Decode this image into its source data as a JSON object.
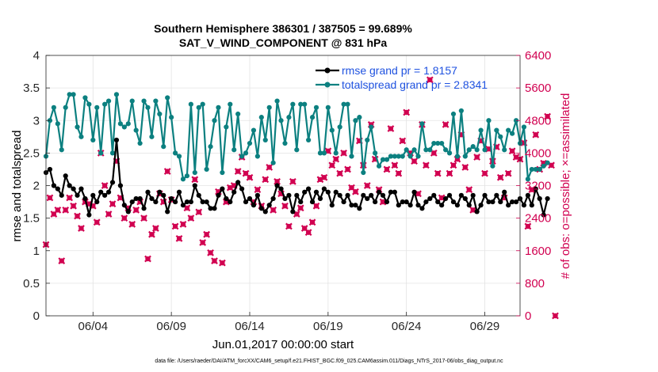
{
  "chart_data": {
    "type": "line",
    "title": "Southern Hemisphere 386301 / 387505 = 99.689%",
    "subtitle": "SAT_V_WIND_COMPONENT @ 831 hPa",
    "xlabel": "Jun.01,2017 00:00:00 start",
    "ylabel": "rmse and totalspread",
    "ylabel_right": "# of obs: o=possible; ×=assimilated",
    "footer": "data file: /Users/raeder/DAI/ATM_forcXX/CAM6_setup/f.e21.FHIST_BGC.f09_025.CAM6assim.011/Diags_NTrS_2017-06/obs_diag_output.nc",
    "xlim": [
      1,
      31.25
    ],
    "ylim": [
      0,
      4
    ],
    "ylim_right": [
      0,
      6400
    ],
    "x_ticks": [
      {
        "pos": 4,
        "label": "06/04"
      },
      {
        "pos": 9,
        "label": "06/09"
      },
      {
        "pos": 14,
        "label": "06/14"
      },
      {
        "pos": 19,
        "label": "06/19"
      },
      {
        "pos": 24,
        "label": "06/24"
      },
      {
        "pos": 29,
        "label": "06/29"
      }
    ],
    "y_ticks": [
      "0",
      "0.5",
      "1",
      "1.5",
      "2",
      "2.5",
      "3",
      "3.5",
      "4"
    ],
    "y_ticks_right": [
      "0",
      "800",
      "1600",
      "2400",
      "3200",
      "4000",
      "4800",
      "5600",
      "6400"
    ],
    "x_start": 1.0,
    "x_step": 0.25,
    "series": [
      {
        "name": "rmse grand pr = 1.8157",
        "color": "#000000",
        "axis": "left",
        "values": [
          2.2,
          2.25,
          2.0,
          1.95,
          1.85,
          2.15,
          2.0,
          1.95,
          1.85,
          1.95,
          1.8,
          1.55,
          1.85,
          1.75,
          1.9,
          1.85,
          1.9,
          2.05,
          2.7,
          2.0,
          1.7,
          1.6,
          1.75,
          1.8,
          1.8,
          1.65,
          1.9,
          1.8,
          1.75,
          1.9,
          1.85,
          1.6,
          1.8,
          1.75,
          1.9,
          1.7,
          1.75,
          1.75,
          2.0,
          1.85,
          1.75,
          1.75,
          1.65,
          1.65,
          1.85,
          1.95,
          1.8,
          1.75,
          1.9,
          2.05,
          1.95,
          1.75,
          1.8,
          1.7,
          1.85,
          1.65,
          1.6,
          1.7,
          1.8,
          2.0,
          1.95,
          1.8,
          1.85,
          1.6,
          1.85,
          1.75,
          1.9,
          1.95,
          1.75,
          1.9,
          1.8,
          1.95,
          1.9,
          1.7,
          1.9,
          1.85,
          1.75,
          1.85,
          1.7,
          1.7,
          1.65,
          1.85,
          1.8,
          1.85,
          1.75,
          1.9,
          1.85,
          1.75,
          1.9,
          1.9,
          1.7,
          1.75,
          1.75,
          1.7,
          1.9,
          1.7,
          1.65,
          1.75,
          1.8,
          1.85,
          1.75,
          1.7,
          1.8,
          1.85,
          1.75,
          1.7,
          1.85,
          1.8,
          1.7,
          1.85,
          1.6,
          1.7,
          1.85,
          1.75,
          1.75,
          1.85,
          1.75,
          1.9,
          1.7,
          1.75,
          1.75,
          1.8,
          1.7,
          1.85,
          1.7,
          1.95,
          1.8,
          1.55,
          1.8
        ]
      },
      {
        "name": "totalspread grand pr = 2.8341",
        "color": "#0c8080",
        "axis": "left",
        "values": [
          2.45,
          3.0,
          3.2,
          2.95,
          2.55,
          3.2,
          3.4,
          3.4,
          2.9,
          2.75,
          3.35,
          3.25,
          2.7,
          3.2,
          2.5,
          3.25,
          3.3,
          2.5,
          3.4,
          2.95,
          2.9,
          2.95,
          3.3,
          2.85,
          2.65,
          3.3,
          3.2,
          2.75,
          3.3,
          3.1,
          2.6,
          3.35,
          3.05,
          2.5,
          2.45,
          2.1,
          2.15,
          3.25,
          2.2,
          3.2,
          3.25,
          2.25,
          2.6,
          3.0,
          3.2,
          2.2,
          2.9,
          3.25,
          2.55,
          3.1,
          2.45,
          2.5,
          2.65,
          2.85,
          2.45,
          3.05,
          2.7,
          3.2,
          2.35,
          3.3,
          3.0,
          2.65,
          3.05,
          3.25,
          2.55,
          3.25,
          3.25,
          2.7,
          3.05,
          3.2,
          2.5,
          2.5,
          3.2,
          2.85,
          2.5,
          2.9,
          3.25,
          3.25,
          2.45,
          3.0,
          3.05,
          2.2,
          2.7,
          2.9,
          2.5,
          2.3,
          2.4,
          2.4,
          2.45,
          2.45,
          2.45,
          2.45,
          2.55,
          2.45,
          2.55,
          2.45,
          2.95,
          2.55,
          2.55,
          2.65,
          2.65,
          2.65,
          2.55,
          2.5,
          3.1,
          2.45,
          3.15,
          2.45,
          2.55,
          2.6,
          2.55,
          2.85,
          2.55,
          3.0,
          2.3,
          2.85,
          2.75,
          2.55,
          2.85,
          2.8,
          3.0,
          2.65,
          2.9,
          2.1,
          2.25,
          2.25,
          2.25,
          2.3,
          2.35
        ]
      },
      {
        "name": "# of obs possible",
        "color": "#d10050",
        "axis": "right",
        "marker": "o",
        "values": [
          1750,
          2900,
          2500,
          2600,
          1350,
          2600,
          2900,
          2700,
          2450,
          2150,
          2800,
          2750,
          2700,
          2300,
          4000,
          3200,
          2500,
          2750,
          3800,
          2900,
          2400,
          2650,
          2250,
          2600,
          2800,
          2400,
          1400,
          2000,
          2150,
          3000,
          2800,
          3550,
          2850,
          2200,
          1900,
          2250,
          2650,
          2400,
          3350,
          2550,
          1800,
          2000,
          1550,
          1350,
          3050,
          1300,
          2800,
          3150,
          3200,
          3550,
          3900,
          3500,
          3400,
          2800,
          3100,
          2700,
          3350,
          3650,
          2600,
          3300,
          3000,
          2700,
          2200,
          3300,
          2500,
          2650,
          2150,
          2050,
          2300,
          2700,
          3350,
          3400,
          4050,
          3700,
          3850,
          3500,
          4000,
          3600,
          3150,
          3050,
          4300,
          3700,
          3200,
          4700,
          3850,
          3100,
          2800,
          3600,
          4600,
          3700,
          3500,
          4300,
          5000,
          4000,
          3800,
          3000,
          4700,
          3700,
          5800,
          4000,
          3500,
          2900,
          4700,
          3500,
          3700,
          3850,
          4450,
          3650,
          3100,
          2600,
          3900,
          4300,
          3500,
          4100,
          3800,
          4150,
          3400,
          2900,
          3500,
          4050,
          3900,
          3850,
          4250,
          2200,
          3100,
          4450,
          3600,
          3750,
          4900,
          3700,
          0
        ]
      }
    ]
  }
}
